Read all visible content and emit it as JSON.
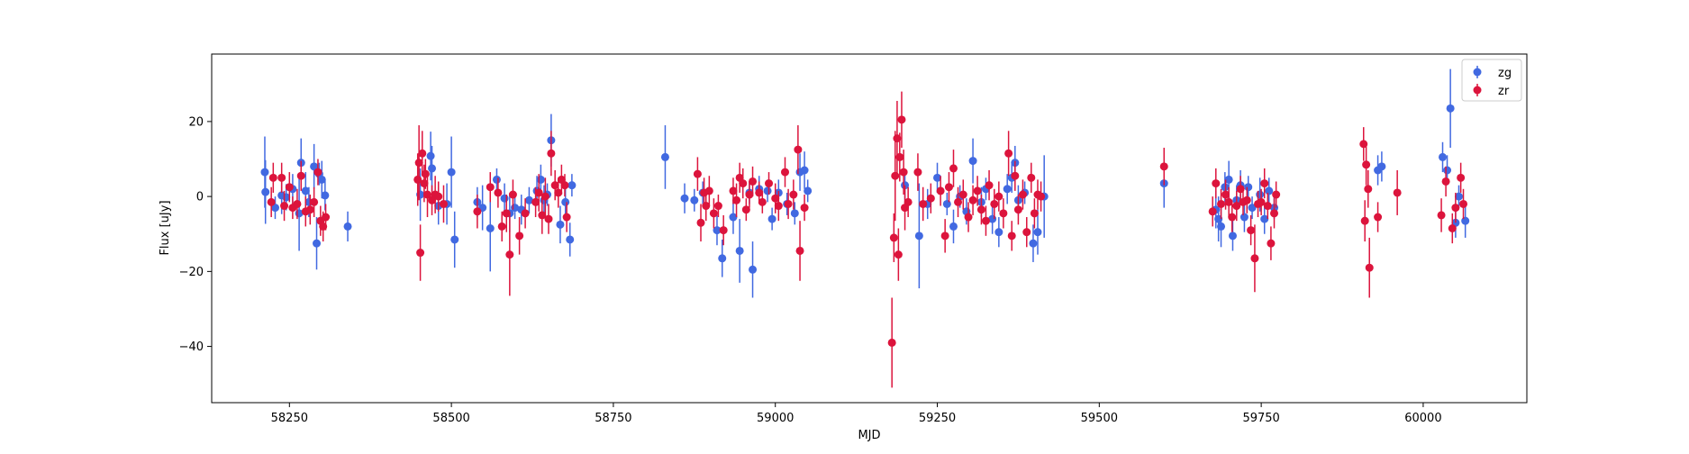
{
  "chart_data": {
    "type": "scatter",
    "title": "",
    "xlabel": "MJD",
    "ylabel": "Flux [uJy]",
    "xlim": [
      58130,
      60160
    ],
    "ylim": [
      -55,
      38
    ],
    "xticks": [
      58250,
      58500,
      58750,
      59000,
      59250,
      59500,
      59750,
      60000
    ],
    "yticks": [
      -40,
      -20,
      0,
      20
    ],
    "grid": false,
    "legend_position": "top-right",
    "series": [
      {
        "name": "zg",
        "color": "#4169e1",
        "points": [
          [
            58212,
            6.5,
            9.5
          ],
          [
            58213,
            1.2,
            8.5
          ],
          [
            58228,
            -3.0,
            3.0
          ],
          [
            58238,
            0.3,
            5.0
          ],
          [
            58245,
            -0.2,
            3.5
          ],
          [
            58255,
            2.0,
            4.0
          ],
          [
            58265,
            -4.5,
            10.0
          ],
          [
            58268,
            9.0,
            6.5
          ],
          [
            58275,
            1.5,
            5.0
          ],
          [
            58280,
            -1.5,
            4.0
          ],
          [
            58288,
            8.0,
            6.0
          ],
          [
            58292,
            -12.5,
            7.0
          ],
          [
            58296,
            6.0,
            3.0
          ],
          [
            58300,
            4.5,
            5.0
          ],
          [
            58305,
            0.3,
            4.0
          ],
          [
            58340,
            -8.0,
            4.0
          ],
          [
            58452,
            0.5,
            7.0
          ],
          [
            58468,
            10.8,
            6.5
          ],
          [
            58470,
            7.5,
            6.0
          ],
          [
            58480,
            -2.5,
            5.0
          ],
          [
            58493,
            -2.0,
            5.5
          ],
          [
            58500,
            6.5,
            9.5
          ],
          [
            58505,
            -11.5,
            7.5
          ],
          [
            58540,
            -1.5,
            4.0
          ],
          [
            58548,
            -3.0,
            6.0
          ],
          [
            58560,
            -8.5,
            11.5
          ],
          [
            58570,
            4.5,
            3.0
          ],
          [
            58582,
            -0.5,
            4.0
          ],
          [
            58590,
            -4.5,
            5.0
          ],
          [
            58598,
            -3.0,
            3.0
          ],
          [
            58608,
            -3.5,
            4.0
          ],
          [
            58620,
            -1.0,
            3.5
          ],
          [
            58632,
            1.5,
            4.0
          ],
          [
            58638,
            4.5,
            4.0
          ],
          [
            58643,
            -1.0,
            4.0
          ],
          [
            58648,
            0.5,
            3.0
          ],
          [
            58654,
            15.0,
            7.0
          ],
          [
            58668,
            -7.5,
            5.0
          ],
          [
            58676,
            -1.5,
            5.0
          ],
          [
            58683,
            -11.5,
            4.5
          ],
          [
            58686,
            3.0,
            3.0
          ],
          [
            58830,
            10.5,
            8.5
          ],
          [
            58860,
            -0.5,
            4.0
          ],
          [
            58875,
            -1.0,
            3.0
          ],
          [
            58888,
            1.0,
            3.0
          ],
          [
            58910,
            -9.0,
            4.0
          ],
          [
            58918,
            -16.5,
            5.0
          ],
          [
            58935,
            -5.5,
            4.5
          ],
          [
            58945,
            -14.5,
            8.5
          ],
          [
            58960,
            1.0,
            3.0
          ],
          [
            58965,
            -19.5,
            7.5
          ],
          [
            58975,
            2.0,
            3.5
          ],
          [
            58988,
            1.5,
            3.0
          ],
          [
            58995,
            -6.0,
            3.0
          ],
          [
            59005,
            1.0,
            3.5
          ],
          [
            59018,
            -2.0,
            3.0
          ],
          [
            59030,
            -4.5,
            3.0
          ],
          [
            59038,
            6.5,
            5.0
          ],
          [
            59045,
            7.0,
            5.0
          ],
          [
            59050,
            1.5,
            3.0
          ],
          [
            59200,
            3.0,
            4.0
          ],
          [
            59222,
            -10.5,
            14.0
          ],
          [
            59235,
            -2.0,
            4.0
          ],
          [
            59250,
            5.0,
            4.0
          ],
          [
            59265,
            -2.0,
            3.0
          ],
          [
            59275,
            -8.0,
            4.5
          ],
          [
            59285,
            0.0,
            3.0
          ],
          [
            59295,
            -4.0,
            3.5
          ],
          [
            59305,
            9.5,
            6.0
          ],
          [
            59318,
            -1.5,
            4.0
          ],
          [
            59325,
            2.0,
            3.0
          ],
          [
            59335,
            -6.0,
            4.0
          ],
          [
            59345,
            -9.5,
            4.0
          ],
          [
            59358,
            2.0,
            4.0
          ],
          [
            59365,
            5.0,
            4.0
          ],
          [
            59370,
            9.0,
            4.5
          ],
          [
            59375,
            -1.0,
            4.0
          ],
          [
            59385,
            1.0,
            3.0
          ],
          [
            59398,
            -12.5,
            5.0
          ],
          [
            59405,
            -9.5,
            6.0
          ],
          [
            59415,
            0.0,
            11.0
          ],
          [
            59600,
            3.5,
            6.5
          ],
          [
            59680,
            -3.5,
            5.0
          ],
          [
            59684,
            -6.0,
            6.0
          ],
          [
            59688,
            -8.0,
            5.5
          ],
          [
            59694,
            2.5,
            4.0
          ],
          [
            59700,
            4.5,
            5.0
          ],
          [
            59706,
            -10.5,
            4.0
          ],
          [
            59712,
            -1.0,
            4.0
          ],
          [
            59718,
            3.0,
            4.0
          ],
          [
            59724,
            -5.5,
            4.0
          ],
          [
            59730,
            2.5,
            3.0
          ],
          [
            59736,
            -3.0,
            3.0
          ],
          [
            59748,
            0.5,
            4.5
          ],
          [
            59755,
            -6.0,
            4.0
          ],
          [
            59762,
            1.5,
            3.5
          ],
          [
            59770,
            -3.0,
            3.0
          ],
          [
            59930,
            7.0,
            4.0
          ],
          [
            59936,
            8.0,
            4.0
          ],
          [
            60030,
            10.5,
            4.0
          ],
          [
            60037,
            7.0,
            4.0
          ],
          [
            60042,
            23.5,
            10.5
          ],
          [
            60050,
            -7.0,
            4.0
          ],
          [
            60065,
            -6.5,
            4.5
          ],
          [
            60055,
            0.0,
            3.0
          ]
        ]
      },
      {
        "name": "zr",
        "color": "#dc143c",
        "points": [
          [
            58222,
            -1.5,
            4.0
          ],
          [
            58225,
            5.0,
            4.0
          ],
          [
            58238,
            5.0,
            4.0
          ],
          [
            58242,
            -2.5,
            4.0
          ],
          [
            58250,
            2.5,
            4.0
          ],
          [
            58255,
            -3.0,
            3.0
          ],
          [
            58262,
            -2.0,
            4.0
          ],
          [
            58268,
            5.5,
            4.0
          ],
          [
            58275,
            -4.0,
            4.0
          ],
          [
            58282,
            -3.5,
            4.0
          ],
          [
            58288,
            -1.5,
            4.0
          ],
          [
            58294,
            6.5,
            3.5
          ],
          [
            58298,
            -6.5,
            4.0
          ],
          [
            58302,
            -8.0,
            4.0
          ],
          [
            58306,
            -5.5,
            3.5
          ],
          [
            58448,
            4.5,
            7.0
          ],
          [
            58450,
            9.0,
            10.0
          ],
          [
            58452,
            -15.0,
            7.5
          ],
          [
            58455,
            11.5,
            6.0
          ],
          [
            58458,
            3.5,
            5.0
          ],
          [
            58460,
            6.0,
            4.0
          ],
          [
            58463,
            0.5,
            6.0
          ],
          [
            58470,
            -1.0,
            4.0
          ],
          [
            58475,
            0.5,
            5.0
          ],
          [
            58480,
            0.0,
            4.0
          ],
          [
            58488,
            -2.0,
            5.0
          ],
          [
            58540,
            -4.0,
            4.5
          ],
          [
            58560,
            2.5,
            4.0
          ],
          [
            58572,
            1.0,
            4.0
          ],
          [
            58578,
            -8.0,
            4.0
          ],
          [
            58585,
            -4.5,
            5.0
          ],
          [
            58590,
            -15.5,
            11.0
          ],
          [
            58595,
            0.5,
            4.0
          ],
          [
            58605,
            -10.5,
            5.0
          ],
          [
            58614,
            -4.5,
            4.0
          ],
          [
            58630,
            -1.5,
            4.0
          ],
          [
            58635,
            1.0,
            5.0
          ],
          [
            58640,
            -5.0,
            5.0
          ],
          [
            58645,
            0.0,
            5.0
          ],
          [
            58650,
            -6.0,
            4.0
          ],
          [
            58654,
            11.5,
            6.0
          ],
          [
            58660,
            3.0,
            4.0
          ],
          [
            58665,
            1.0,
            4.0
          ],
          [
            58670,
            4.5,
            4.0
          ],
          [
            58675,
            3.0,
            3.0
          ],
          [
            58678,
            -5.5,
            4.0
          ],
          [
            58880,
            6.0,
            4.5
          ],
          [
            58885,
            -7.0,
            5.0
          ],
          [
            58890,
            1.0,
            4.0
          ],
          [
            58893,
            -2.5,
            4.0
          ],
          [
            58898,
            1.5,
            4.0
          ],
          [
            58905,
            -4.5,
            4.0
          ],
          [
            58912,
            -2.5,
            3.0
          ],
          [
            58920,
            -9.0,
            4.0
          ],
          [
            58935,
            1.5,
            3.5
          ],
          [
            58940,
            -1.0,
            4.5
          ],
          [
            58945,
            5.0,
            4.0
          ],
          [
            58950,
            3.5,
            4.0
          ],
          [
            58955,
            -3.5,
            3.0
          ],
          [
            58960,
            0.5,
            3.5
          ],
          [
            58965,
            4.0,
            4.0
          ],
          [
            58975,
            1.0,
            3.0
          ],
          [
            58980,
            -1.5,
            3.0
          ],
          [
            58990,
            3.5,
            3.0
          ],
          [
            59000,
            -0.5,
            4.0
          ],
          [
            59005,
            -2.5,
            4.0
          ],
          [
            59015,
            6.5,
            4.0
          ],
          [
            59020,
            -2.0,
            4.0
          ],
          [
            59028,
            0.5,
            4.0
          ],
          [
            59035,
            12.5,
            6.5
          ],
          [
            59038,
            -14.5,
            8.0
          ],
          [
            59045,
            -3.0,
            3.5
          ],
          [
            59180,
            -39.0,
            12.0
          ],
          [
            59183,
            -11.0,
            6.5
          ],
          [
            59185,
            5.5,
            12.0
          ],
          [
            59188,
            15.5,
            10.0
          ],
          [
            59190,
            -15.5,
            7.0
          ],
          [
            59192,
            10.5,
            6.5
          ],
          [
            59195,
            20.5,
            7.5
          ],
          [
            59198,
            6.5,
            6.0
          ],
          [
            59200,
            -3.0,
            6.0
          ],
          [
            59205,
            -1.5,
            4.0
          ],
          [
            59220,
            6.5,
            5.0
          ],
          [
            59228,
            -2.0,
            4.5
          ],
          [
            59240,
            -0.5,
            4.0
          ],
          [
            59255,
            1.5,
            4.0
          ],
          [
            59262,
            -10.5,
            4.5
          ],
          [
            59268,
            2.5,
            4.0
          ],
          [
            59275,
            7.5,
            5.0
          ],
          [
            59282,
            -1.5,
            4.0
          ],
          [
            59290,
            0.5,
            4.0
          ],
          [
            59298,
            -5.5,
            4.0
          ],
          [
            59305,
            -1.0,
            4.0
          ],
          [
            59312,
            1.5,
            4.0
          ],
          [
            59318,
            -3.5,
            4.0
          ],
          [
            59325,
            -6.5,
            4.0
          ],
          [
            59330,
            3.0,
            4.0
          ],
          [
            59338,
            -2.0,
            4.0
          ],
          [
            59345,
            0.0,
            4.0
          ],
          [
            59352,
            -4.5,
            4.0
          ],
          [
            59360,
            11.5,
            6.0
          ],
          [
            59365,
            -10.5,
            4.0
          ],
          [
            59370,
            5.5,
            4.0
          ],
          [
            59375,
            -3.5,
            4.0
          ],
          [
            59382,
            0.5,
            4.0
          ],
          [
            59388,
            -9.5,
            4.0
          ],
          [
            59395,
            5.0,
            4.0
          ],
          [
            59400,
            -4.5,
            4.0
          ],
          [
            59405,
            0.5,
            4.0
          ],
          [
            59410,
            0.0,
            4.0
          ],
          [
            59600,
            8.0,
            5.0
          ],
          [
            59675,
            -4.0,
            4.0
          ],
          [
            59680,
            3.5,
            4.0
          ],
          [
            59688,
            -2.0,
            4.0
          ],
          [
            59695,
            0.5,
            4.0
          ],
          [
            59700,
            -1.5,
            4.0
          ],
          [
            59705,
            -5.5,
            4.0
          ],
          [
            59712,
            -2.5,
            4.0
          ],
          [
            59718,
            2.0,
            3.5
          ],
          [
            59722,
            -1.5,
            3.5
          ],
          [
            59728,
            -1.0,
            3.5
          ],
          [
            59734,
            -9.0,
            4.0
          ],
          [
            59740,
            -16.5,
            9.0
          ],
          [
            59745,
            -2.0,
            3.5
          ],
          [
            59750,
            -1.5,
            3.5
          ],
          [
            59755,
            3.5,
            4.0
          ],
          [
            59760,
            -2.5,
            3.5
          ],
          [
            59765,
            -12.5,
            4.5
          ],
          [
            59770,
            -4.5,
            4.0
          ],
          [
            59773,
            0.5,
            3.5
          ],
          [
            59908,
            14.0,
            4.5
          ],
          [
            59910,
            -6.5,
            5.5
          ],
          [
            59912,
            8.5,
            5.5
          ],
          [
            59915,
            2.0,
            5.0
          ],
          [
            59917,
            -19.0,
            8.0
          ],
          [
            59930,
            -5.5,
            4.0
          ],
          [
            59960,
            1.0,
            6.0
          ],
          [
            60028,
            -5.0,
            4.5
          ],
          [
            60035,
            4.0,
            4.0
          ],
          [
            60045,
            -8.5,
            4.0
          ],
          [
            60050,
            -3.0,
            4.0
          ],
          [
            60058,
            5.0,
            4.0
          ],
          [
            60062,
            -2.0,
            4.0
          ]
        ]
      }
    ]
  }
}
